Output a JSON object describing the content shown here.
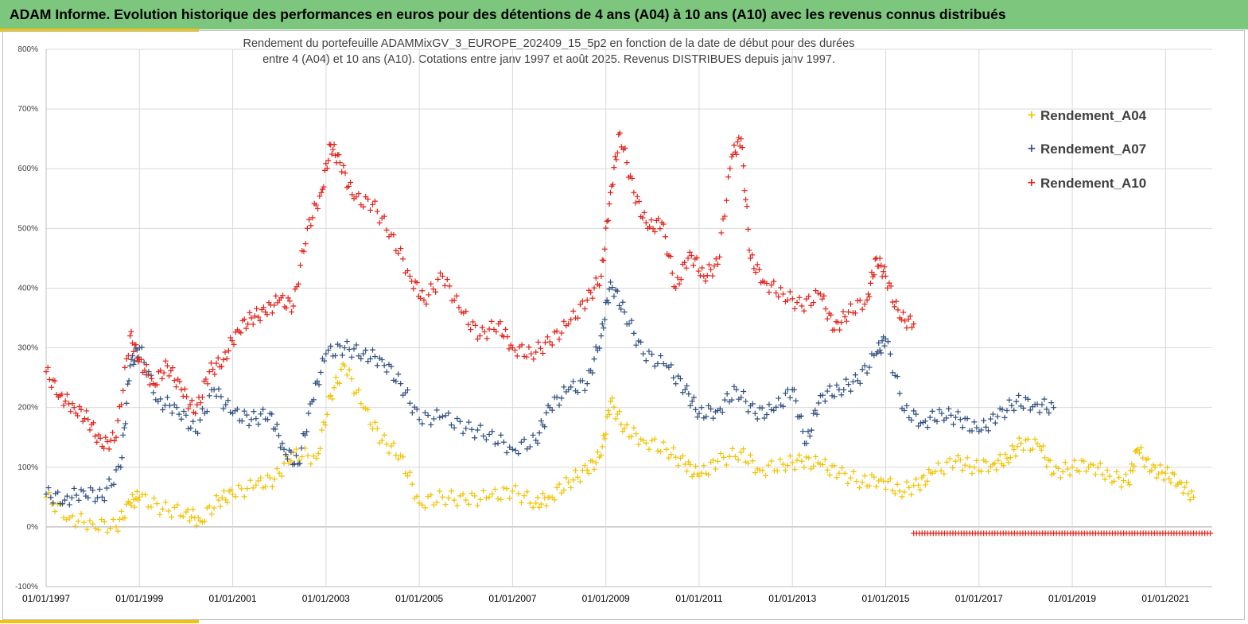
{
  "header": {
    "title": "ADAM Informe. Evolution historique des performances en euros pour des détentions de 4 ans (A04) à 10 ans (A10) avec les revenus connus distribués"
  },
  "chart_data": {
    "type": "scatter",
    "title_line1": "Rendement du portefeuille ADAMMixGV_3_EUROPE_202409_15_5p2  en fonction de la date de début pour des durées",
    "title_line2": "entre 4 (A04) et 10 ans (A10). Cotations entre janv 1997 et août 2025. Revenus DISTRIBUES depuis janv 1997.",
    "xlabel": "",
    "ylabel": "",
    "x_range": [
      "1997-01-01",
      "2022-01-01"
    ],
    "ylim": [
      -100,
      800
    ],
    "y_ticks": [
      "-100%",
      "0%",
      "100%",
      "200%",
      "300%",
      "400%",
      "500%",
      "600%",
      "700%",
      "800%"
    ],
    "y_tick_values": [
      -100,
      0,
      100,
      200,
      300,
      400,
      500,
      600,
      700,
      800
    ],
    "x_ticks": [
      "01/01/1997",
      "01/01/1999",
      "01/01/2001",
      "01/01/2003",
      "01/01/2005",
      "01/01/2007",
      "01/01/2009",
      "01/01/2011",
      "01/01/2013",
      "01/01/2015",
      "01/01/2017",
      "01/01/2019",
      "01/01/2021"
    ],
    "x_tick_years": [
      1997,
      1999,
      2001,
      2003,
      2005,
      2007,
      2009,
      2011,
      2013,
      2015,
      2017,
      2019,
      2021
    ],
    "grid": true,
    "legend_position": "top-right",
    "series": [
      {
        "name": "Rendement_A04",
        "color": "#f2c200",
        "x": [
          1997.0,
          1997.5,
          1998.0,
          1998.5,
          1998.8,
          1999.0,
          1999.5,
          2000.0,
          2000.3,
          2000.7,
          2001.0,
          2001.5,
          2001.9,
          2002.3,
          2002.8,
          2003.1,
          2003.4,
          2003.8,
          2004.2,
          2004.6,
          2005.0,
          2005.5,
          2006.0,
          2006.5,
          2007.0,
          2007.5,
          2007.8,
          2008.2,
          2008.6,
          2008.9,
          2009.1,
          2009.4,
          2009.8,
          2010.3,
          2010.7,
          2011.0,
          2011.4,
          2011.9,
          2012.3,
          2012.8,
          2013.2,
          2013.6,
          2014.0,
          2014.5,
          2014.9,
          2015.3,
          2015.7,
          2016.0,
          2016.5,
          2016.9,
          2017.3,
          2017.6,
          2017.9,
          2018.3,
          2018.6,
          2019.0,
          2019.4,
          2019.8,
          2020.2,
          2020.4,
          2020.7,
          2021.0,
          2021.3,
          2021.6
        ],
        "y": [
          50,
          15,
          5,
          0,
          40,
          50,
          30,
          25,
          10,
          45,
          55,
          70,
          80,
          125,
          115,
          220,
          270,
          200,
          145,
          120,
          40,
          50,
          45,
          50,
          60,
          40,
          50,
          75,
          95,
          120,
          210,
          165,
          145,
          130,
          105,
          85,
          110,
          125,
          95,
          105,
          110,
          105,
          90,
          75,
          80,
          60,
          70,
          90,
          110,
          100,
          105,
          115,
          140,
          135,
          90,
          100,
          105,
          85,
          75,
          130,
          95,
          90,
          75,
          50
        ]
      },
      {
        "name": "Rendement_A07",
        "color": "#2f4f7f",
        "x": [
          1997.0,
          1997.4,
          1997.8,
          1998.2,
          1998.6,
          1998.8,
          1999.0,
          1999.4,
          1999.8,
          2000.2,
          2000.6,
          2001.0,
          2001.4,
          2001.8,
          2002.1,
          2002.4,
          2002.7,
          2003.0,
          2003.4,
          2003.8,
          2004.2,
          2004.6,
          2005.0,
          2005.5,
          2006.0,
          2006.5,
          2007.0,
          2007.5,
          2007.8,
          2008.2,
          2008.6,
          2008.9,
          2009.1,
          2009.4,
          2009.8,
          2010.3,
          2010.7,
          2011.0,
          2011.4,
          2011.8,
          2012.2,
          2012.6,
          2013.0,
          2013.3,
          2013.6,
          2014.0,
          2014.4,
          2014.8,
          2015.0,
          2015.4,
          2015.8,
          2016.2,
          2016.6,
          2017.0,
          2017.4,
          2017.8,
          2018.2,
          2018.6
        ],
        "y": [
          55,
          45,
          60,
          50,
          100,
          270,
          300,
          210,
          200,
          160,
          230,
          190,
          180,
          190,
          130,
          105,
          210,
          290,
          300,
          290,
          280,
          240,
          180,
          185,
          165,
          155,
          130,
          145,
          200,
          230,
          240,
          320,
          410,
          360,
          290,
          270,
          230,
          190,
          195,
          230,
          190,
          195,
          230,
          140,
          220,
          230,
          245,
          290,
          315,
          195,
          175,
          190,
          180,
          160,
          185,
          210,
          205,
          200
        ]
      },
      {
        "name": "Rendement_A10",
        "color": "#e32119",
        "x": [
          1997.0,
          1997.3,
          1997.6,
          1997.9,
          1998.2,
          1998.5,
          1998.8,
          1999.0,
          1999.3,
          1999.6,
          1999.9,
          2000.2,
          2000.5,
          2000.8,
          2001.1,
          2001.4,
          2001.7,
          2002.0,
          2002.3,
          2002.6,
          2002.9,
          2003.1,
          2003.3,
          2003.6,
          2004.0,
          2004.4,
          2004.8,
          2005.1,
          2005.5,
          2005.9,
          2006.3,
          2006.7,
          2007.0,
          2007.4,
          2007.8,
          2008.2,
          2008.6,
          2008.9,
          2009.1,
          2009.3,
          2009.6,
          2009.9,
          2010.2,
          2010.5,
          2010.8,
          2011.1,
          2011.4,
          2011.7,
          2011.9,
          2012.1,
          2012.4,
          2012.8,
          2013.2,
          2013.6,
          2013.9,
          2014.2,
          2014.6,
          2014.8,
          2015.0,
          2015.3,
          2015.6
        ],
        "y": [
          260,
          220,
          200,
          180,
          135,
          150,
          320,
          280,
          240,
          270,
          230,
          190,
          260,
          280,
          330,
          350,
          360,
          380,
          370,
          500,
          560,
          640,
          610,
          550,
          540,
          490,
          420,
          380,
          420,
          360,
          320,
          340,
          300,
          290,
          310,
          340,
          380,
          420,
          560,
          660,
          560,
          500,
          510,
          400,
          460,
          420,
          440,
          620,
          650,
          450,
          410,
          390,
          370,
          390,
          330,
          360,
          380,
          450,
          420,
          350,
          340
        ]
      }
    ]
  }
}
